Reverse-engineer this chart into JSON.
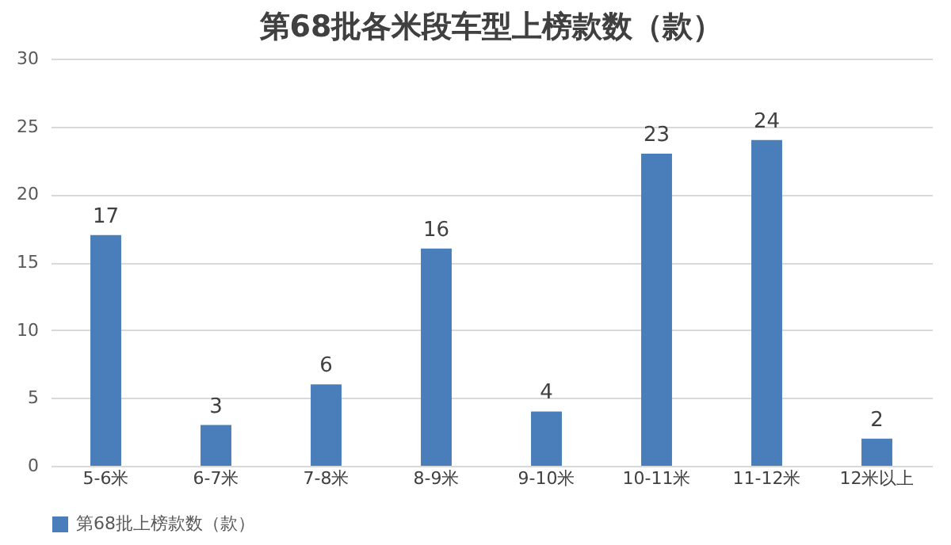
{
  "chart_data": {
    "type": "bar",
    "title": "第68批各米段车型上榜款数（款）",
    "categories": [
      "5-6米",
      "6-7米",
      "7-8米",
      "8-9米",
      "9-10米",
      "10-11米",
      "11-12米",
      "12米以上"
    ],
    "series": [
      {
        "name": "第68批上榜款数（款）",
        "color": "#4a7ebb",
        "values": [
          17,
          3,
          6,
          16,
          4,
          23,
          24,
          2
        ]
      }
    ],
    "ylim": [
      0,
      30
    ],
    "yticks": [
      0,
      5,
      10,
      15,
      20,
      25,
      30
    ],
    "grid": "y",
    "legend": "bottom",
    "data_labels": true
  }
}
